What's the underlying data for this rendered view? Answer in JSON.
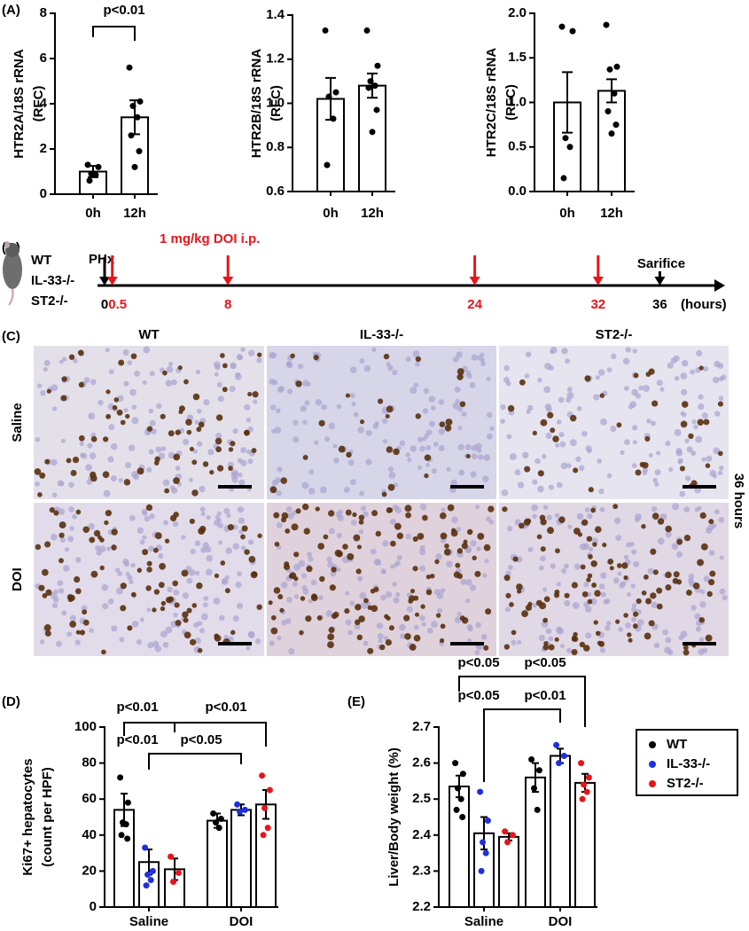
{
  "panels": [
    "(A)",
    "(B)",
    "(C)",
    "(D)",
    "(E)"
  ],
  "timeline": {
    "groups": [
      "WT",
      "IL-33-/-",
      "ST2-/-"
    ],
    "events": [
      {
        "label": "PHx",
        "hours": [
          0
        ],
        "color": "#000000"
      },
      {
        "label": "1 mg/kg DOI i.p.",
        "hours": [
          0.5,
          8,
          24,
          32
        ],
        "color": "#e8141b"
      },
      {
        "label": "Sarifice",
        "hours": [
          36
        ],
        "color": "#000000"
      }
    ],
    "unit": "(hours)"
  },
  "micrographs": {
    "columns": [
      "WT",
      "IL-33-/-",
      "ST2-/-"
    ],
    "rows": [
      "Saline",
      "DOI"
    ],
    "time": "36 hours"
  },
  "chart_data": [
    {
      "type": "bar",
      "ylabel": [
        "HTR2A/18S rRNA",
        "(RFC)"
      ],
      "categories": [
        "0h",
        "12h"
      ],
      "color": "#000000",
      "values": [
        1.0,
        3.4
      ],
      "errors": [
        0.25,
        0.75
      ],
      "points": [
        [
          1.3,
          1.2,
          0.9,
          0.85,
          0.6
        ],
        [
          5.6,
          4.1,
          3.9,
          3.4,
          2.6,
          1.9,
          1.2
        ]
      ],
      "ylim": [
        0,
        8
      ],
      "yticks": [
        0,
        2,
        4,
        6,
        8
      ],
      "annotations": [
        "p<0.01"
      ]
    },
    {
      "type": "bar",
      "ylabel": [
        "HTR2B/18S rRNA",
        "(RFC)"
      ],
      "categories": [
        "0h",
        "12h"
      ],
      "color": "#000000",
      "values": [
        1.02,
        1.08
      ],
      "errors": [
        0.095,
        0.055
      ],
      "points": [
        [
          1.33,
          1.05,
          1.03,
          0.93,
          0.72
        ],
        [
          1.33,
          1.17,
          1.1,
          1.08,
          1.07,
          0.97,
          0.87
        ]
      ],
      "ylim": [
        0.6,
        1.4
      ],
      "yticks": [
        0.6,
        0.8,
        {
          "value": 1.0,
          "label": "1.0"
        },
        1.2,
        1.4
      ]
    },
    {
      "type": "bar",
      "ylabel": [
        "HTR2C/18S rRNA",
        "(RFC)"
      ],
      "categories": [
        "0h",
        "12h"
      ],
      "color": "#000000",
      "values": [
        1.0,
        1.13
      ],
      "errors": [
        0.34,
        0.13
      ],
      "points": [
        [
          1.85,
          1.8,
          0.6,
          0.5,
          0.15
        ],
        [
          1.87,
          1.4,
          1.37,
          1.1,
          0.9,
          0.75,
          0.65
        ]
      ],
      "ylim": [
        0,
        2
      ],
      "yticks": [
        {
          "value": 0,
          "label": "0.0"
        },
        0.5,
        {
          "value": 1,
          "label": "1.0"
        },
        1.5,
        {
          "value": 2,
          "label": "2.0"
        }
      ]
    },
    {
      "type": "bar",
      "ylabel": [
        "Ki67+ hepatocytes",
        "(count per HPF)"
      ],
      "categories": [
        "Saline",
        "DOI"
      ],
      "series": [
        {
          "color": "#000000",
          "values": [
            54,
            48
          ],
          "errors": [
            9,
            4
          ],
          "points": [
            [
              72,
              58,
              47,
              46,
              40,
              38
            ],
            [
              52,
              49,
              47,
              44
            ]
          ]
        },
        {
          "color": "#1f2fe0",
          "values": [
            25,
            54
          ],
          "errors": [
            7,
            3
          ],
          "points": [
            [
              33,
              20,
              18,
              15,
              12
            ],
            [
              57,
              54,
              53
            ]
          ]
        },
        {
          "color": "#e8141b",
          "values": [
            21,
            57
          ],
          "errors": [
            6,
            8
          ],
          "points": [
            [
              28,
              19,
              14
            ],
            [
              73,
              65,
              55,
              44,
              40
            ]
          ]
        }
      ],
      "ylim": [
        0,
        100
      ],
      "yticks": [
        0,
        20,
        40,
        60,
        80,
        100
      ],
      "annotations": [
        "p<0.01",
        "p<0.01",
        "p<0.01",
        "p<0.05"
      ]
    },
    {
      "type": "bar",
      "ylabel": [
        "Liver/Body weight (%)"
      ],
      "categories": [
        "Saline",
        "DOI"
      ],
      "series": [
        {
          "name": "WT",
          "color": "#000000",
          "values": [
            2.535,
            2.56
          ],
          "errors": [
            0.03,
            0.04
          ],
          "points": [
            [
              2.6,
              2.57,
              2.53,
              2.5,
              2.47,
              2.45
            ],
            [
              2.61,
              2.58,
              2.53,
              2.47
            ]
          ]
        },
        {
          "name": "IL-33-/-",
          "color": "#1f2fe0",
          "values": [
            2.405,
            2.62
          ],
          "errors": [
            0.045,
            0.02
          ],
          "points": [
            [
              2.52,
              2.44,
              2.38,
              2.35,
              2.3
            ],
            [
              2.65,
              2.62,
              2.6
            ]
          ]
        },
        {
          "name": "ST2-/-",
          "color": "#e8141b",
          "values": [
            2.395,
            2.545
          ],
          "errors": [
            0.01,
            0.025
          ],
          "points": [
            [
              2.41,
              2.4,
              2.38
            ],
            [
              2.6,
              2.56,
              2.54,
              2.52,
              2.5
            ]
          ]
        }
      ],
      "ylim": [
        2.2,
        2.7
      ],
      "yticks": [
        2.2,
        2.3,
        2.4,
        2.5,
        2.6,
        2.7
      ],
      "annotations": [
        "p<0.05",
        "p<0.05",
        "p<0.05",
        "p<0.01"
      ]
    }
  ]
}
